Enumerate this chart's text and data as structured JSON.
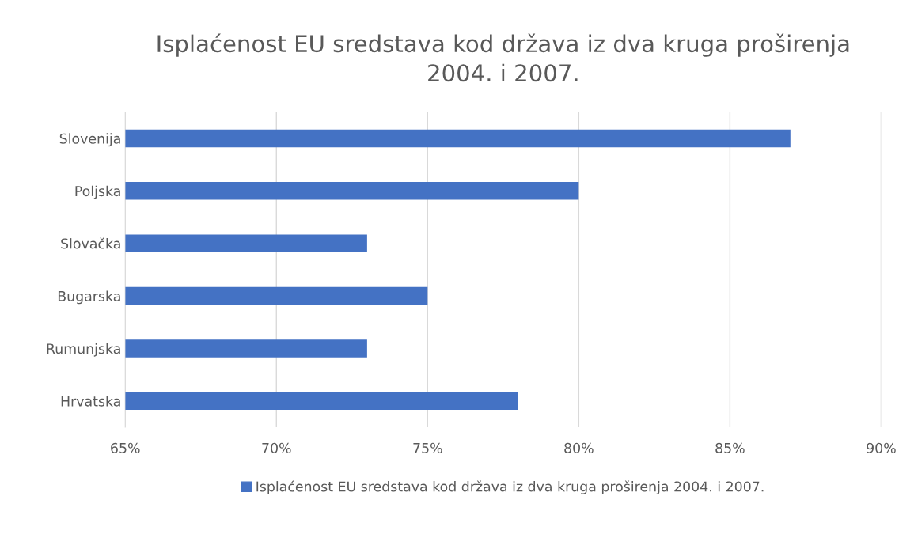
{
  "chart_data": {
    "type": "bar",
    "orientation": "horizontal",
    "title": "Isplaćenost EU sredstava kod država iz dva kruga proširenja\n2004. i 2007.",
    "categories": [
      "Slovenija",
      "Poljska",
      "Slovačka",
      "Bugarska",
      "Rumunjska",
      "Hrvatska"
    ],
    "series": [
      {
        "name": "Isplaćenost EU sredstava kod država iz dva kruga proširenja 2004. i 2007.",
        "color": "#4472c4",
        "values": [
          87,
          80,
          73,
          75,
          73,
          78
        ]
      }
    ],
    "xlim": [
      65,
      90
    ],
    "xticks": [
      {
        "value": 65,
        "label": "65%"
      },
      {
        "value": 70,
        "label": "70%"
      },
      {
        "value": 75,
        "label": "75%"
      },
      {
        "value": 80,
        "label": "80%"
      },
      {
        "value": 85,
        "label": "85%"
      },
      {
        "value": 90,
        "label": "90%"
      }
    ],
    "grid": "x",
    "legend": "bottom"
  }
}
